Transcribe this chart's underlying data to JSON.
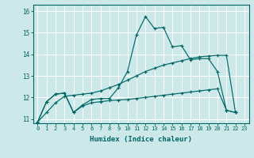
{
  "xlabel": "Humidex (Indice chaleur)",
  "bg_color": "#cde8e8",
  "line_color": "#006666",
  "grid_color": "#ffffff",
  "xlim": [
    -0.5,
    23.5
  ],
  "ylim": [
    10.8,
    16.3
  ],
  "xticks": [
    0,
    1,
    2,
    3,
    4,
    5,
    6,
    7,
    8,
    9,
    10,
    11,
    12,
    13,
    14,
    15,
    16,
    17,
    18,
    19,
    20,
    21,
    22,
    23
  ],
  "yticks": [
    11,
    12,
    13,
    14,
    15,
    16
  ],
  "series": [
    {
      "x": [
        0,
        1,
        2,
        3,
        4,
        5,
        6,
        7,
        8,
        9,
        10,
        11,
        12,
        13,
        14,
        15,
        16,
        17,
        18,
        19,
        20,
        21,
        22
      ],
      "y": [
        10.85,
        11.8,
        12.15,
        12.2,
        11.3,
        11.65,
        11.9,
        11.95,
        11.95,
        12.45,
        13.2,
        14.9,
        15.75,
        15.2,
        15.25,
        14.35,
        14.4,
        13.75,
        13.8,
        13.8,
        13.2,
        11.4,
        11.3
      ]
    },
    {
      "x": [
        0,
        1,
        2,
        3,
        4,
        5,
        6,
        7,
        8,
        9,
        10,
        11,
        12,
        13,
        14,
        15,
        16,
        17,
        18,
        19,
        20,
        21,
        22
      ],
      "y": [
        10.85,
        11.3,
        11.75,
        12.05,
        12.1,
        12.15,
        12.2,
        12.3,
        12.45,
        12.6,
        12.8,
        13.0,
        13.2,
        13.35,
        13.5,
        13.6,
        13.7,
        13.8,
        13.88,
        13.92,
        13.95,
        13.95,
        11.3
      ]
    },
    {
      "x": [
        0,
        1,
        2,
        3,
        4,
        5,
        6,
        7,
        8,
        9,
        10,
        11,
        12,
        13,
        14,
        15,
        16,
        17,
        18,
        19,
        20,
        21,
        22
      ],
      "y": [
        10.85,
        11.8,
        12.15,
        12.2,
        11.3,
        11.6,
        11.75,
        11.8,
        11.85,
        11.88,
        11.9,
        11.95,
        12.0,
        12.05,
        12.1,
        12.15,
        12.2,
        12.25,
        12.3,
        12.35,
        12.4,
        11.4,
        11.3
      ]
    }
  ]
}
